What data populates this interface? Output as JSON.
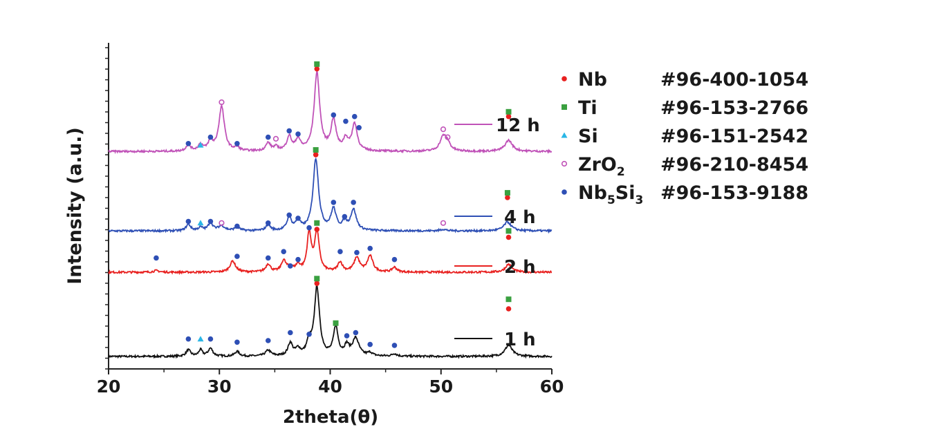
{
  "chart_data": {
    "type": "line",
    "xlabel": "2theta(θ)",
    "ylabel": "Intensity (a.u.)",
    "xlim": [
      20,
      60
    ],
    "xticks": [
      "20",
      "30",
      "40",
      "50",
      "60"
    ],
    "yticks_labeled": false,
    "grid": false,
    "colors": {
      "1 h": "#111111",
      "2 h": "#e8201f",
      "4 h": "#2e4fb5",
      "12 h": "#c052b8"
    },
    "phases": [
      {
        "symbol": "●",
        "name": "Nb",
        "card": "#96-400-1054",
        "color": "#e8201f",
        "shape": "filled-circle"
      },
      {
        "symbol": "■",
        "name": "Ti",
        "card": "#96-153-2766",
        "color": "#3aa040",
        "shape": "square"
      },
      {
        "symbol": "▲",
        "name": "Si",
        "card": "#96-151-2542",
        "color": "#29b6e6",
        "shape": "triangle"
      },
      {
        "symbol": "○",
        "name": "ZrO",
        "sub": "2",
        "card": "#96-210-8454",
        "color": "#c052b8",
        "shape": "open-circle"
      },
      {
        "symbol": "●",
        "name": "Nb",
        "sub": "5",
        "name2": "Si",
        "sub2": "3",
        "card": "#96-153-9188",
        "color": "#2e4fb5",
        "shape": "filled-circle"
      }
    ],
    "series": [
      {
        "name": "1 h",
        "baseline": 0.0,
        "peaks": [
          [
            27.2,
            0.2,
            0.25
          ],
          [
            28.3,
            0.2,
            0.2
          ],
          [
            29.2,
            0.25,
            0.25
          ],
          [
            31.6,
            0.15,
            0.25
          ],
          [
            34.4,
            0.18,
            0.3
          ],
          [
            36.4,
            0.4,
            0.25
          ],
          [
            37.1,
            0.2,
            0.25
          ],
          [
            38.1,
            0.4,
            0.25
          ],
          [
            38.8,
            2.15,
            0.28
          ],
          [
            40.5,
            0.9,
            0.25
          ],
          [
            41.5,
            0.3,
            0.25
          ],
          [
            42.3,
            0.55,
            0.35
          ],
          [
            43.6,
            0.1,
            0.25
          ],
          [
            45.8,
            0.08,
            0.25
          ],
          [
            56.1,
            0.35,
            0.4
          ]
        ],
        "markers": [
          [
            27.2,
            "Nb5Si3",
            0.55
          ],
          [
            28.3,
            "Si",
            0.55
          ],
          [
            29.2,
            "Nb5Si3",
            0.55
          ],
          [
            31.6,
            "Nb5Si3",
            0.45
          ],
          [
            34.4,
            "Nb5Si3",
            0.5
          ],
          [
            36.4,
            "Nb5Si3",
            0.75
          ],
          [
            38.1,
            "Nb5Si3",
            0.7
          ],
          [
            38.8,
            "Nb",
            2.3
          ],
          [
            38.8,
            "Ti",
            2.45
          ],
          [
            40.5,
            "Ti",
            1.05
          ],
          [
            41.5,
            "Nb5Si3",
            0.65
          ],
          [
            42.3,
            "Nb5Si3",
            0.75
          ],
          [
            43.6,
            "Nb5Si3",
            0.38
          ],
          [
            45.8,
            "Nb5Si3",
            0.35
          ],
          [
            56.1,
            "Nb",
            1.5
          ],
          [
            56.1,
            "Ti",
            1.8
          ]
        ]
      },
      {
        "name": "2 h",
        "baseline": 2.65,
        "peaks": [
          [
            24.3,
            0.05,
            0.3
          ],
          [
            31.2,
            0.35,
            0.3
          ],
          [
            34.4,
            0.25,
            0.25
          ],
          [
            35.8,
            0.35,
            0.25
          ],
          [
            36.4,
            0.15,
            0.25
          ],
          [
            37.1,
            0.2,
            0.25
          ],
          [
            38.1,
            1.2,
            0.22
          ],
          [
            38.8,
            1.25,
            0.25
          ],
          [
            40.9,
            0.3,
            0.25
          ],
          [
            42.4,
            0.45,
            0.3
          ],
          [
            43.6,
            0.5,
            0.3
          ],
          [
            45.8,
            0.15,
            0.25
          ],
          [
            56.1,
            0.25,
            0.35
          ]
        ],
        "markers": [
          [
            24.3,
            "Nb5Si3",
            0.45
          ],
          [
            31.6,
            "Nb5Si3",
            0.5
          ],
          [
            34.4,
            "Nb5Si3",
            0.45
          ],
          [
            35.8,
            "Nb5Si3",
            0.65
          ],
          [
            36.4,
            "Nb5Si3",
            0.2
          ],
          [
            37.1,
            "Nb5Si3",
            0.4
          ],
          [
            38.1,
            "Nb5Si3",
            1.4
          ],
          [
            38.8,
            "Nb",
            1.35
          ],
          [
            38.8,
            "Ti",
            1.55
          ],
          [
            40.9,
            "Nb5Si3",
            0.65
          ],
          [
            42.4,
            "Nb5Si3",
            0.62
          ],
          [
            43.6,
            "Nb5Si3",
            0.75
          ],
          [
            45.8,
            "Nb5Si3",
            0.4
          ],
          [
            56.1,
            "Nb",
            1.1
          ],
          [
            56.1,
            "Ti",
            1.3
          ]
        ]
      },
      {
        "name": "4 h",
        "baseline": 3.95,
        "peaks": [
          [
            27.2,
            0.2,
            0.25
          ],
          [
            28.3,
            0.1,
            0.25
          ],
          [
            29.2,
            0.25,
            0.25
          ],
          [
            30.2,
            0.15,
            0.35
          ],
          [
            31.6,
            0.12,
            0.25
          ],
          [
            34.4,
            0.18,
            0.25
          ],
          [
            36.3,
            0.4,
            0.25
          ],
          [
            37.1,
            0.3,
            0.25
          ],
          [
            38.7,
            2.25,
            0.3
          ],
          [
            40.3,
            0.65,
            0.28
          ],
          [
            41.3,
            0.25,
            0.25
          ],
          [
            42.1,
            0.65,
            0.3
          ],
          [
            50.2,
            0.05,
            0.3
          ],
          [
            56.0,
            0.28,
            0.4
          ]
        ],
        "markers": [
          [
            27.2,
            "Nb5Si3",
            0.3
          ],
          [
            28.3,
            "Si",
            0.25
          ],
          [
            29.2,
            "Nb5Si3",
            0.3
          ],
          [
            30.2,
            "ZrO2",
            0.25
          ],
          [
            31.6,
            "Nb5Si3",
            0.15
          ],
          [
            34.4,
            "Nb5Si3",
            0.25
          ],
          [
            36.3,
            "Nb5Si3",
            0.5
          ],
          [
            37.1,
            "Nb5Si3",
            0.4
          ],
          [
            38.7,
            "Nb",
            2.4
          ],
          [
            38.7,
            "Ti",
            2.55
          ],
          [
            40.3,
            "Nb5Si3",
            0.9
          ],
          [
            41.3,
            "Nb5Si3",
            0.45
          ],
          [
            42.1,
            "Nb5Si3",
            0.9
          ],
          [
            50.2,
            "ZrO2",
            0.25
          ],
          [
            56.0,
            "Nb",
            1.05
          ],
          [
            56.0,
            "Ti",
            1.2
          ]
        ]
      },
      {
        "name": "12 h",
        "baseline": 6.45,
        "peaks": [
          [
            27.2,
            0.2,
            0.25
          ],
          [
            28.3,
            0.2,
            0.25
          ],
          [
            29.2,
            0.3,
            0.25
          ],
          [
            30.2,
            1.4,
            0.3
          ],
          [
            31.6,
            0.1,
            0.25
          ],
          [
            34.4,
            0.25,
            0.25
          ],
          [
            35.1,
            0.12,
            0.25
          ],
          [
            36.3,
            0.45,
            0.25
          ],
          [
            37.1,
            0.35,
            0.25
          ],
          [
            38.8,
            2.45,
            0.3
          ],
          [
            40.3,
            0.95,
            0.28
          ],
          [
            41.4,
            0.35,
            0.25
          ],
          [
            42.2,
            0.85,
            0.28
          ],
          [
            50.2,
            0.45,
            0.35
          ],
          [
            50.6,
            0.2,
            0.3
          ],
          [
            56.1,
            0.35,
            0.4
          ]
        ],
        "markers": [
          [
            27.2,
            "Nb5Si3",
            0.25
          ],
          [
            28.3,
            "Si",
            0.2
          ],
          [
            29.2,
            "Nb5Si3",
            0.45
          ],
          [
            30.2,
            "ZrO2",
            1.55
          ],
          [
            31.6,
            "Nb5Si3",
            0.25
          ],
          [
            34.4,
            "Nb5Si3",
            0.45
          ],
          [
            35.1,
            "ZrO2",
            0.4
          ],
          [
            36.3,
            "Nb5Si3",
            0.65
          ],
          [
            37.1,
            "Nb5Si3",
            0.55
          ],
          [
            38.8,
            "Nb",
            2.6
          ],
          [
            38.8,
            "Ti",
            2.75
          ],
          [
            40.3,
            "Nb5Si3",
            1.15
          ],
          [
            41.4,
            "Nb5Si3",
            0.95
          ],
          [
            42.2,
            "Nb5Si3",
            1.1
          ],
          [
            42.6,
            "Nb5Si3",
            0.75
          ],
          [
            50.2,
            "ZrO2",
            0.7
          ],
          [
            50.6,
            "ZrO2",
            0.45
          ],
          [
            56.1,
            "Nb",
            1.1
          ],
          [
            56.1,
            "Ti",
            1.25
          ]
        ]
      }
    ]
  }
}
